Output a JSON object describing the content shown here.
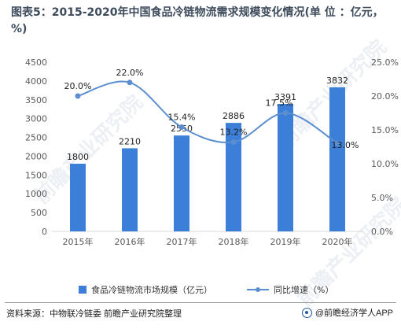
{
  "title": {
    "prefix": "图表5：",
    "text": "2015-2020年中国食品冷链物流需求规模变化情况(单 位 ：亿元，%)"
  },
  "watermark": "前瞻产业研究院",
  "footer": {
    "source": "资料来源：中物联冷链委 前瞻产业研究院整理",
    "brand": "@前瞻经济学人APP"
  },
  "colors": {
    "bar": "#3b7fd8",
    "line": "#5b8fd0",
    "axis_text": "#595959",
    "grid": "#d9d9d9"
  },
  "legend": {
    "bar_label": "食品冷链物流市场规模（亿元）",
    "line_label": "同比增速（%）"
  },
  "chart_data": {
    "type": "bar",
    "categories": [
      "2015年",
      "2016年",
      "2017年",
      "2018年",
      "2019年",
      "2020年"
    ],
    "series": [
      {
        "name": "食品冷链物流市场规模（亿元）",
        "type": "bar",
        "axis": "left",
        "values": [
          1800,
          2210,
          2550,
          2886,
          3391,
          3832
        ],
        "labels": [
          "1800",
          "2210",
          "2550",
          "2886",
          "3391",
          "3832"
        ]
      },
      {
        "name": "同比增速（%）",
        "type": "line",
        "axis": "right",
        "values": [
          20.0,
          22.0,
          15.4,
          13.2,
          17.5,
          13.0
        ],
        "labels": [
          "20.0%",
          "22.0%",
          "15.4%",
          "13.2%",
          "17.5%",
          "13.0%"
        ]
      }
    ],
    "y_left": {
      "min": 0,
      "max": 4500,
      "step": 500,
      "ticks": [
        "0",
        "500",
        "1000",
        "1500",
        "2000",
        "2500",
        "3000",
        "3500",
        "4000",
        "4500"
      ]
    },
    "y_right": {
      "min": 0,
      "max": 25,
      "step": 5,
      "ticks": [
        "0.0%",
        "5.0%",
        "10.0%",
        "15.0%",
        "20.0%",
        "25.0%"
      ]
    },
    "grid": false,
    "legend_position": "bottom"
  }
}
